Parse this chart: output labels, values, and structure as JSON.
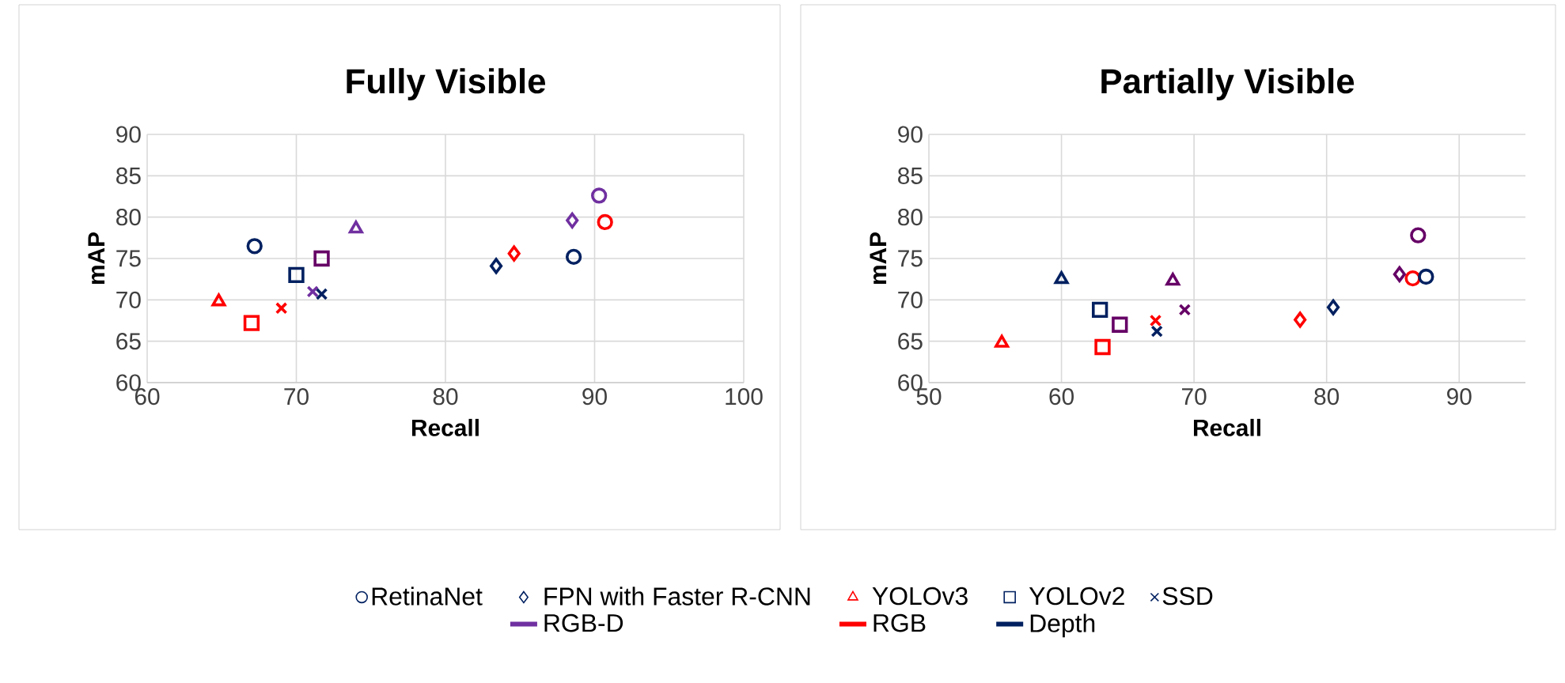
{
  "chart_data": [
    {
      "type": "scatter",
      "title": "Fully Visible",
      "xlabel": "Recall",
      "ylabel": "mAP",
      "xlim": [
        60,
        100
      ],
      "xticks": [
        60,
        70,
        80,
        90,
        100
      ],
      "ylim": [
        60,
        90
      ],
      "yticks": [
        60,
        65,
        70,
        75,
        80,
        85,
        90
      ],
      "grid": true,
      "legend": "bottom",
      "series": [
        {
          "name": "RetinaNet",
          "marker": "circle",
          "x": [
            67.2,
            90.3,
            90.7,
            88.6
          ],
          "values": [
            76.5,
            82.6,
            79.4,
            75.2
          ],
          "colors": [
            "#002060",
            "#7030a0",
            "#ff0000",
            "#002060"
          ]
        },
        {
          "name": "FPN with Faster R-CNN",
          "marker": "diamond",
          "x": [
            83.4,
            84.6,
            88.5
          ],
          "values": [
            74.1,
            75.6,
            79.6
          ],
          "colors": [
            "#002060",
            "#ff0000",
            "#7030a0"
          ]
        },
        {
          "name": "YOLOv3",
          "marker": "triangle",
          "x": [
            64.8,
            74.0
          ],
          "values": [
            69.8,
            78.6
          ],
          "colors": [
            "#ff0000",
            "#7030a0"
          ]
        },
        {
          "name": "YOLOv2",
          "marker": "square",
          "x": [
            67.0,
            70.0,
            71.7
          ],
          "values": [
            67.2,
            73.0,
            75.0
          ],
          "colors": [
            "#ff0000",
            "#002060",
            "#660066"
          ]
        },
        {
          "name": "SSD",
          "marker": "cross",
          "x": [
            69.0,
            71.1,
            71.7
          ],
          "values": [
            69.0,
            71.0,
            70.7
          ],
          "colors": [
            "#ff0000",
            "#7030a0",
            "#002060"
          ]
        },
        {
          "name": "RGB-D",
          "type": "line",
          "color": "#7030a0"
        },
        {
          "name": "RGB",
          "type": "line",
          "color": "#ff0000"
        },
        {
          "name": "Depth",
          "type": "line",
          "color": "#002060"
        }
      ]
    },
    {
      "type": "scatter",
      "title": "Partially Visible",
      "xlabel": "Recall",
      "ylabel": "mAP",
      "xlim": [
        50,
        95
      ],
      "xticks": [
        50,
        60,
        70,
        80,
        90
      ],
      "ylim": [
        60,
        90
      ],
      "yticks": [
        60,
        65,
        70,
        75,
        80,
        85,
        90
      ],
      "grid": true,
      "series": [
        {
          "marker": "circle",
          "x": [
            86.9,
            86.5,
            87.5
          ],
          "values": [
            77.8,
            72.6,
            72.8
          ],
          "colors": [
            "#660066",
            "#ff0000",
            "#002060"
          ]
        },
        {
          "marker": "diamond",
          "x": [
            85.5,
            78.0,
            80.5
          ],
          "values": [
            73.1,
            67.6,
            69.1
          ],
          "colors": [
            "#660066",
            "#ff0000",
            "#002060"
          ]
        },
        {
          "marker": "triangle",
          "x": [
            60.0,
            55.5,
            68.4
          ],
          "values": [
            72.5,
            64.8,
            72.3
          ],
          "colors": [
            "#002060",
            "#ff0000",
            "#660066"
          ]
        },
        {
          "marker": "square",
          "x": [
            62.9,
            63.1,
            64.4
          ],
          "values": [
            68.8,
            64.3,
            67.0
          ],
          "colors": [
            "#002060",
            "#ff0000",
            "#660066"
          ]
        },
        {
          "marker": "cross",
          "x": [
            67.1,
            67.2,
            69.3
          ],
          "values": [
            67.5,
            66.2,
            68.8
          ],
          "colors": [
            "#ff0000",
            "#002060",
            "#660066"
          ]
        }
      ]
    }
  ]
}
